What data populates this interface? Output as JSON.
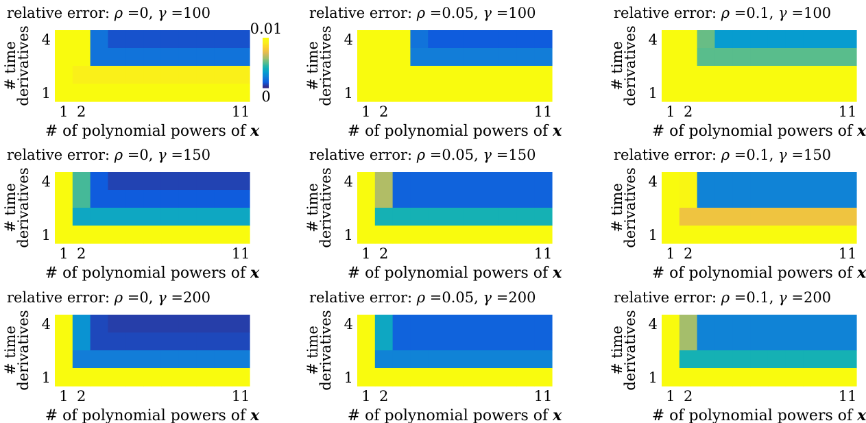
{
  "chart_data": {
    "type": "heatmap",
    "title_template": "relative error:  ρ =${rho}, γ =${gamma}",
    "title_prefix": "relative error:",
    "rho_symbol": "ρ",
    "gamma_symbol": "γ",
    "xlabel_text": "# of polynomial powers of",
    "xlabel_var": "x",
    "ylabel": [
      "#  time",
      "derivatives"
    ],
    "x_ticks": [
      "1",
      "2",
      "11"
    ],
    "y_ticks": [
      "4",
      "1"
    ],
    "x_range": [
      1,
      11
    ],
    "y_range": [
      1,
      4
    ],
    "colorbar": {
      "min_label": "0",
      "max_label": "0.01",
      "range": [
        0,
        0.01
      ],
      "colormap": "parula"
    },
    "panels": [
      {
        "rho": "0",
        "gamma": "100",
        "cells": [
          [
            0.01,
            0.01,
            0.0017,
            0.0008,
            0.0008,
            0.0008,
            0.0008,
            0.0008,
            0.0008,
            0.0008,
            0.0008
          ],
          [
            0.01,
            0.01,
            0.0017,
            0.0017,
            0.0017,
            0.0017,
            0.0017,
            0.0017,
            0.0017,
            0.0017,
            0.0017
          ],
          [
            0.01,
            0.0093,
            0.0093,
            0.0093,
            0.0093,
            0.0093,
            0.0093,
            0.0093,
            0.0093,
            0.0093,
            0.0093
          ],
          [
            0.01,
            0.01,
            0.01,
            0.01,
            0.01,
            0.01,
            0.01,
            0.01,
            0.01,
            0.01,
            0.01
          ]
        ]
      },
      {
        "rho": "0.05",
        "gamma": "100",
        "cells": [
          [
            0.01,
            0.01,
            0.01,
            0.0017,
            0.001,
            0.001,
            0.001,
            0.001,
            0.001,
            0.001,
            0.001
          ],
          [
            0.01,
            0.01,
            0.01,
            0.002,
            0.002,
            0.002,
            0.002,
            0.002,
            0.002,
            0.002,
            0.002
          ],
          [
            0.01,
            0.01,
            0.01,
            0.01,
            0.01,
            0.01,
            0.01,
            0.01,
            0.01,
            0.01,
            0.01
          ],
          [
            0.01,
            0.01,
            0.01,
            0.01,
            0.01,
            0.01,
            0.01,
            0.01,
            0.01,
            0.01,
            0.01
          ]
        ]
      },
      {
        "rho": "0.1",
        "gamma": "100",
        "cells": [
          [
            0.01,
            0.01,
            0.0052,
            0.003,
            0.003,
            0.003,
            0.003,
            0.003,
            0.003,
            0.003,
            0.003
          ],
          [
            0.01,
            0.01,
            0.005,
            0.005,
            0.005,
            0.005,
            0.005,
            0.005,
            0.005,
            0.005,
            0.005
          ],
          [
            0.01,
            0.01,
            0.01,
            0.01,
            0.01,
            0.01,
            0.01,
            0.01,
            0.01,
            0.01,
            0.01
          ],
          [
            0.01,
            0.01,
            0.01,
            0.01,
            0.01,
            0.01,
            0.01,
            0.01,
            0.01,
            0.01,
            0.01
          ]
        ]
      },
      {
        "rho": "0",
        "gamma": "150",
        "cells": [
          [
            0.01,
            0.0047,
            0.001,
            0.0005,
            0.0005,
            0.0005,
            0.0005,
            0.0005,
            0.0005,
            0.0005,
            0.0005
          ],
          [
            0.01,
            0.0047,
            0.001,
            0.001,
            0.001,
            0.001,
            0.001,
            0.001,
            0.001,
            0.001,
            0.001
          ],
          [
            0.01,
            0.0035,
            0.0035,
            0.0035,
            0.0035,
            0.0035,
            0.0035,
            0.0035,
            0.0035,
            0.0035,
            0.0035
          ],
          [
            0.01,
            0.01,
            0.01,
            0.01,
            0.01,
            0.01,
            0.01,
            0.01,
            0.01,
            0.01,
            0.01
          ]
        ]
      },
      {
        "rho": "0.05",
        "gamma": "150",
        "cells": [
          [
            0.01,
            0.0062,
            0.0012,
            0.0012,
            0.0012,
            0.0012,
            0.0012,
            0.0012,
            0.0012,
            0.0012,
            0.0012
          ],
          [
            0.01,
            0.0062,
            0.0012,
            0.0012,
            0.0012,
            0.0012,
            0.0012,
            0.0012,
            0.0012,
            0.0012,
            0.0012
          ],
          [
            0.01,
            0.004,
            0.004,
            0.004,
            0.004,
            0.004,
            0.004,
            0.004,
            0.004,
            0.004,
            0.004
          ],
          [
            0.01,
            0.01,
            0.01,
            0.01,
            0.01,
            0.01,
            0.01,
            0.01,
            0.01,
            0.01,
            0.01
          ]
        ]
      },
      {
        "rho": "0.1",
        "gamma": "150",
        "cells": [
          [
            0.01,
            0.0097,
            0.0022,
            0.0022,
            0.0022,
            0.0022,
            0.0022,
            0.0022,
            0.0022,
            0.0022,
            0.0022
          ],
          [
            0.01,
            0.0097,
            0.0022,
            0.0022,
            0.0022,
            0.0022,
            0.0022,
            0.0022,
            0.0022,
            0.0022,
            0.0022
          ],
          [
            0.01,
            0.0075,
            0.0075,
            0.0075,
            0.0075,
            0.0075,
            0.0075,
            0.0075,
            0.0075,
            0.0075,
            0.0075
          ],
          [
            0.01,
            0.01,
            0.01,
            0.01,
            0.01,
            0.01,
            0.01,
            0.01,
            0.01,
            0.01,
            0.01
          ]
        ]
      },
      {
        "rho": "0",
        "gamma": "200",
        "cells": [
          [
            0.01,
            0.0027,
            0.0006,
            0.0004,
            0.0004,
            0.0004,
            0.0004,
            0.0004,
            0.0004,
            0.0004,
            0.0004
          ],
          [
            0.01,
            0.0027,
            0.0006,
            0.0006,
            0.0006,
            0.0006,
            0.0006,
            0.0006,
            0.0006,
            0.0006,
            0.0006
          ],
          [
            0.01,
            0.002,
            0.002,
            0.002,
            0.002,
            0.002,
            0.002,
            0.002,
            0.002,
            0.002,
            0.002
          ],
          [
            0.01,
            0.01,
            0.01,
            0.01,
            0.01,
            0.01,
            0.01,
            0.01,
            0.01,
            0.01,
            0.01
          ]
        ]
      },
      {
        "rho": "0.05",
        "gamma": "200",
        "cells": [
          [
            0.01,
            0.0035,
            0.0012,
            0.0012,
            0.0012,
            0.0012,
            0.0012,
            0.0012,
            0.0012,
            0.0012,
            0.0012
          ],
          [
            0.01,
            0.0035,
            0.0012,
            0.0012,
            0.0012,
            0.0012,
            0.0012,
            0.0012,
            0.0012,
            0.0012,
            0.0012
          ],
          [
            0.01,
            0.0022,
            0.0022,
            0.0022,
            0.0022,
            0.0022,
            0.0022,
            0.0022,
            0.0022,
            0.0022,
            0.0022
          ],
          [
            0.01,
            0.01,
            0.01,
            0.01,
            0.01,
            0.01,
            0.01,
            0.01,
            0.01,
            0.01,
            0.01
          ]
        ]
      },
      {
        "rho": "0.1",
        "gamma": "200",
        "cells": [
          [
            0.01,
            0.006,
            0.0022,
            0.0022,
            0.0022,
            0.0022,
            0.0022,
            0.0022,
            0.0022,
            0.0022,
            0.0022
          ],
          [
            0.01,
            0.006,
            0.0022,
            0.0022,
            0.0022,
            0.0022,
            0.0022,
            0.0022,
            0.0022,
            0.0022,
            0.0022
          ],
          [
            0.01,
            0.004,
            0.004,
            0.004,
            0.004,
            0.004,
            0.004,
            0.004,
            0.004,
            0.004,
            0.004
          ],
          [
            0.01,
            0.01,
            0.01,
            0.01,
            0.01,
            0.01,
            0.01,
            0.01,
            0.01,
            0.01,
            0.01
          ]
        ]
      }
    ]
  }
}
